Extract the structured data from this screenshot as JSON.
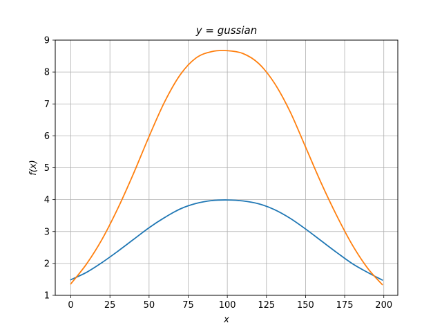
{
  "chart_data": {
    "type": "line",
    "title": "y = gussian",
    "xlabel": "x",
    "ylabel": "f(x)",
    "xlim": [
      -9.95,
      208.95
    ],
    "ylim": [
      1,
      9
    ],
    "xticks": [
      0,
      25,
      50,
      75,
      100,
      125,
      150,
      175,
      200
    ],
    "yticks": [
      1,
      2,
      3,
      4,
      5,
      6,
      7,
      8,
      9
    ],
    "grid": true,
    "legend": false,
    "series": [
      {
        "color": "#1f77b4",
        "x": [
          0,
          10,
          20,
          30,
          40,
          50,
          60,
          70,
          80,
          90,
          100,
          110,
          120,
          130,
          140,
          150,
          160,
          170,
          180,
          190,
          199
        ],
        "y": [
          1.49,
          1.72,
          2.03,
          2.38,
          2.75,
          3.12,
          3.44,
          3.71,
          3.88,
          3.97,
          3.99,
          3.96,
          3.87,
          3.69,
          3.42,
          3.08,
          2.71,
          2.34,
          1.99,
          1.71,
          1.48
        ]
      },
      {
        "color": "#ff7f0e",
        "x": [
          0,
          10,
          20,
          30,
          40,
          50,
          60,
          70,
          80,
          90,
          100,
          110,
          120,
          130,
          140,
          150,
          160,
          170,
          180,
          190,
          199
        ],
        "y": [
          1.36,
          1.98,
          2.76,
          3.72,
          4.81,
          5.98,
          7.07,
          7.92,
          8.44,
          8.64,
          8.67,
          8.58,
          8.27,
          7.66,
          6.77,
          5.65,
          4.52,
          3.49,
          2.57,
          1.83,
          1.34
        ]
      }
    ]
  }
}
